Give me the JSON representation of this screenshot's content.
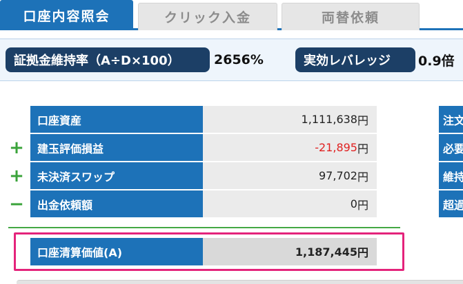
{
  "tabs": [
    {
      "label": "口座内容照会"
    },
    {
      "label": "クリック入金"
    },
    {
      "label": "両替依頼"
    }
  ],
  "rates": {
    "margin_ratio_label": "証拠金維持率（A÷D×100）",
    "margin_ratio_value": "2656%",
    "leverage_label": "実効レバレッジ",
    "leverage_value": "0.9倍"
  },
  "account_rows": [
    {
      "sign": "",
      "label": "口座資産",
      "value": "1,111,638",
      "unit": "円"
    },
    {
      "sign": "+",
      "label": "建玉評価損益",
      "value": "-21,895",
      "unit": "円"
    },
    {
      "sign": "+",
      "label": "未決済スワップ",
      "value": "97,702",
      "unit": "円"
    },
    {
      "sign": "−",
      "label": "出金依頼額",
      "value": "0",
      "unit": "円"
    }
  ],
  "total": {
    "label": "口座清算価値(A)",
    "value": "1,187,445",
    "unit": "円"
  },
  "right_column": [
    "注文",
    "必要",
    "維持",
    "超過"
  ],
  "colors": {
    "tab_active": "#1d72b8",
    "label_bg": "#1d72b8",
    "pill_bg": "#1c3f66",
    "negative": "#e02020",
    "sign": "#3aa33a",
    "highlight": "#e4237b"
  }
}
